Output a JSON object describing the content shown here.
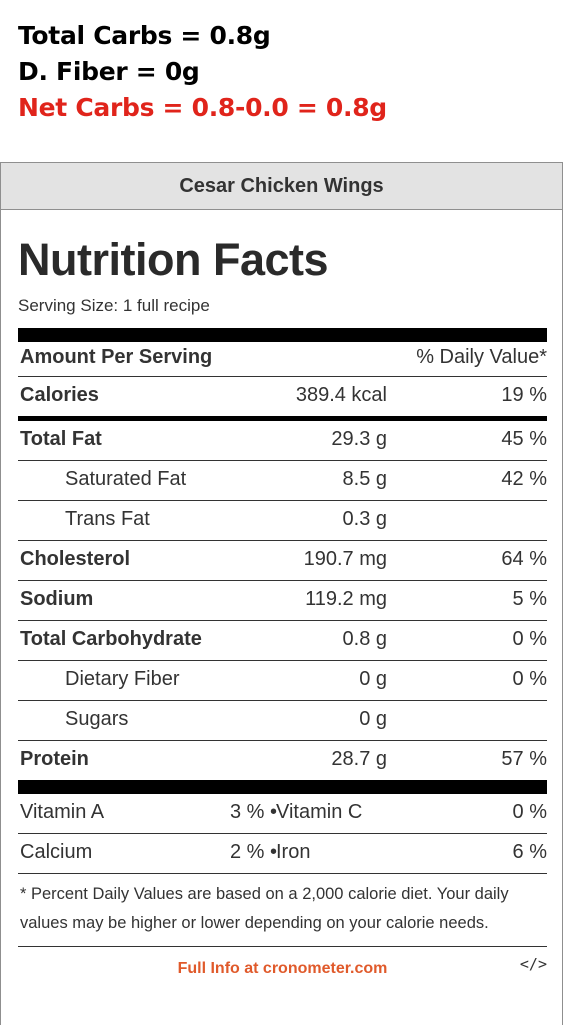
{
  "summary": {
    "total_carbs": "Total Carbs = 0.8g",
    "fiber": "D. Fiber = 0g",
    "net_carbs": "Net Carbs = 0.8-0.0 = 0.8g"
  },
  "panel": {
    "header": "Cesar Chicken Wings",
    "title": "Nutrition Facts",
    "serving_size": "Serving Size: 1 full recipe",
    "amount_per_serving": "Amount Per Serving",
    "daily_value_header": "% Daily Value*",
    "rows": [
      {
        "name": "Calories",
        "amount": "389.4 kcal",
        "pct": "19 %"
      },
      {
        "name": "Total Fat",
        "amount": "29.3 g",
        "pct": "45 %"
      },
      {
        "name": "Saturated Fat",
        "amount": "8.5 g",
        "pct": "42 %"
      },
      {
        "name": "Trans Fat",
        "amount": "0.3 g",
        "pct": ""
      },
      {
        "name": "Cholesterol",
        "amount": "190.7 mg",
        "pct": "64 %"
      },
      {
        "name": "Sodium",
        "amount": "119.2 mg",
        "pct": "5 %"
      },
      {
        "name": "Total Carbohydrate",
        "amount": "0.8 g",
        "pct": "0 %"
      },
      {
        "name": "Dietary Fiber",
        "amount": "0 g",
        "pct": "0 %"
      },
      {
        "name": "Sugars",
        "amount": "0 g",
        "pct": ""
      },
      {
        "name": "Protein",
        "amount": "28.7 g",
        "pct": "57 %"
      }
    ],
    "vitamins": [
      {
        "name1": "Vitamin A",
        "pct1": "3 %",
        "name2": "Vitamin C",
        "pct2": "0 %"
      },
      {
        "name1": "Calcium",
        "pct1": "2 %",
        "name2": "Iron",
        "pct2": "6 %"
      }
    ],
    "bullet": "•",
    "footnote": "* Percent Daily Values are based on a 2,000 calorie diet. Your daily values may be higher or lower depending on your calorie needs.",
    "footer_link": "Full Info at cronometer.com",
    "embed_icon": "</>"
  },
  "colors": {
    "net_carbs": "#e0241b",
    "link": "#e05a2b",
    "header_bg": "#e3e3e3"
  }
}
